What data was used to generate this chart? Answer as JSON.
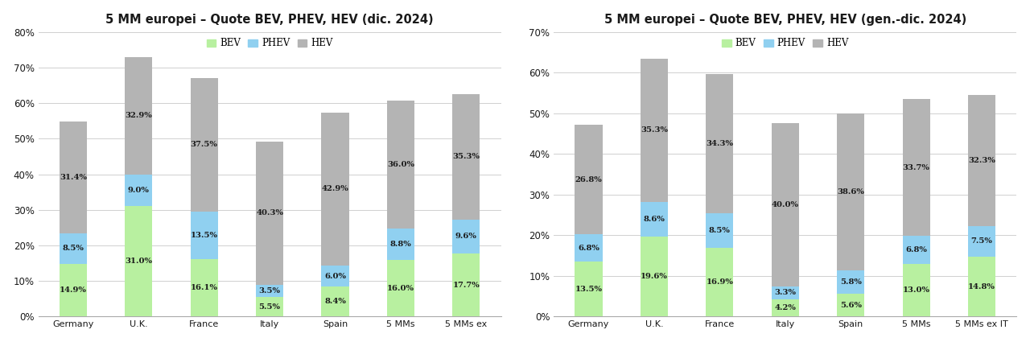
{
  "chart1": {
    "title": "5 MM europei – Quote BEV, PHEV, HEV (dic. 2024)",
    "categories": [
      "Germany",
      "U.K.",
      "France",
      "Italy",
      "Spain",
      "5 MMs",
      "5 MMs ex"
    ],
    "bev": [
      14.9,
      31.0,
      16.1,
      5.5,
      8.4,
      16.0,
      17.7
    ],
    "phev": [
      8.5,
      9.0,
      13.5,
      3.5,
      6.0,
      8.8,
      9.6
    ],
    "hev": [
      31.4,
      32.9,
      37.5,
      40.3,
      42.9,
      36.0,
      35.3
    ],
    "ylim": [
      0,
      80
    ],
    "yticks": [
      0,
      10,
      20,
      30,
      40,
      50,
      60,
      70,
      80
    ]
  },
  "chart2": {
    "title": "5 MM europei – Quote BEV, PHEV, HEV (gen.-dic. 2024)",
    "categories": [
      "Germany",
      "U.K.",
      "France",
      "Italy",
      "Spain",
      "5 MMs",
      "5 MMs ex IT"
    ],
    "bev": [
      13.5,
      19.6,
      16.9,
      4.2,
      5.6,
      13.0,
      14.8
    ],
    "phev": [
      6.8,
      8.6,
      8.5,
      3.3,
      5.8,
      6.8,
      7.5
    ],
    "hev": [
      26.8,
      35.3,
      34.3,
      40.0,
      38.6,
      33.7,
      32.3
    ],
    "ylim": [
      0,
      70
    ],
    "yticks": [
      0,
      10,
      20,
      30,
      40,
      50,
      60,
      70
    ]
  },
  "colors": {
    "bev": "#b8f0a0",
    "phev": "#90d0f0",
    "hev": "#b4b4b4"
  },
  "bar_width": 0.42,
  "bg_color": "#ffffff",
  "text_color": "#1a1a1a",
  "legend_items": [
    "BEV",
    "PHEV",
    "HEV"
  ]
}
